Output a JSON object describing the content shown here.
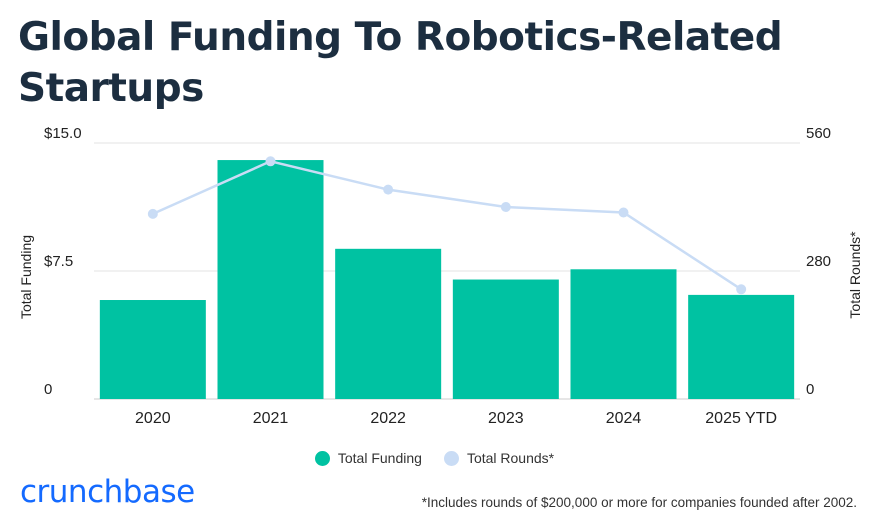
{
  "title": "Global Funding To Robotics-Related Startups",
  "colors": {
    "bar": "#00c2a2",
    "line": "#c9dcf5",
    "point": "#c9dcf5"
  },
  "chart_data": {
    "type": "bar+line",
    "categories": [
      "2020",
      "2021",
      "2022",
      "2023",
      "2024",
      "2025 YTD"
    ],
    "series": [
      {
        "name": "Total Funding",
        "type": "bar",
        "axis": "left",
        "values": [
          5.8,
          14.0,
          8.8,
          7.0,
          7.6,
          6.1
        ]
      },
      {
        "name": "Total Rounds*",
        "type": "line",
        "axis": "right",
        "values": [
          405,
          520,
          458,
          420,
          408,
          240
        ]
      }
    ],
    "y_left": {
      "label": "Total Funding",
      "ticks": [
        "$15.0",
        "$7.5",
        "0"
      ],
      "min": 0,
      "max": 15
    },
    "y_right": {
      "label": "Total Rounds*",
      "ticks": [
        "560",
        "280",
        "0"
      ],
      "min": 0,
      "max": 560
    },
    "grid": true,
    "legend": "bottom-center"
  },
  "legend": {
    "items": [
      "Total Funding",
      "Total Rounds*"
    ]
  },
  "brand": "crunchbase",
  "footnote": "*Includes rounds of $200,000 or more for companies founded after 2002."
}
